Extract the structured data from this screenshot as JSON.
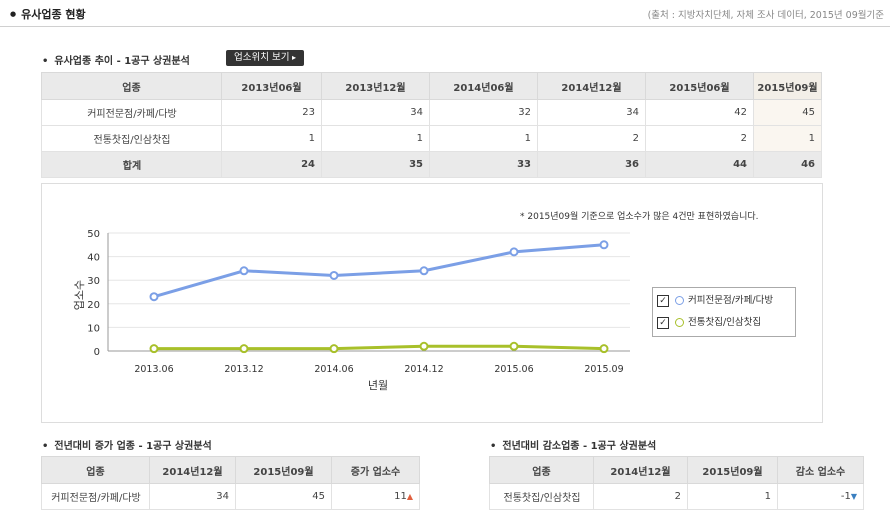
{
  "header": {
    "title": "유사업종 현황",
    "source": "(출처 : 지방자치단체, 자체 조사 데이터, 2015년 09월기준"
  },
  "trend": {
    "title": "유사업종 추이 - 1공구 상권분석",
    "map_button": "업소위치 보기",
    "columns": [
      "업종",
      "2013년06월",
      "2013년12월",
      "2014년06월",
      "2014년12월",
      "2015년06월",
      "2015년09월"
    ],
    "rows": [
      {
        "name": "커피전문점/카페/다방",
        "values": [
          "23",
          "34",
          "32",
          "34",
          "42",
          "45"
        ]
      },
      {
        "name": "전통찻집/인삼찻집",
        "values": [
          "1",
          "1",
          "1",
          "2",
          "2",
          "1"
        ]
      }
    ],
    "total": {
      "name": "합계",
      "values": [
        "24",
        "35",
        "33",
        "36",
        "44",
        "46"
      ]
    }
  },
  "chart_data": {
    "type": "line",
    "note": "* 2015년09월 기준으로 업소수가 많은 4건만 표현하였습니다.",
    "x": [
      "2013.06",
      "2013.12",
      "2014.06",
      "2014.12",
      "2015.06",
      "2015.09"
    ],
    "xlabel": "년월",
    "ylabel": "업소수",
    "ylim": [
      0,
      50
    ],
    "yticks": [
      "0",
      "10",
      "20",
      "30",
      "40",
      "50"
    ],
    "grid": true,
    "legend": "right",
    "series": [
      {
        "name": "커피전문점/카페/다방",
        "values": [
          23,
          34,
          32,
          34,
          42,
          45
        ],
        "color": "#7b9fe6"
      },
      {
        "name": "전통찻집/인삼찻집",
        "values": [
          1,
          1,
          1,
          2,
          2,
          1
        ],
        "color": "#a8c02a"
      }
    ]
  },
  "increase": {
    "title": "전년대비 증가 업종 - 1공구 상권분석",
    "columns": [
      "업종",
      "2014년12월",
      "2015년09월",
      "증가 업소수"
    ],
    "rows": [
      {
        "name": "커피전문점/카페/다방",
        "v1": "34",
        "v2": "45",
        "delta": "11",
        "arrow": "▲"
      }
    ]
  },
  "decrease": {
    "title": "전년대비 감소업종 - 1공구 상권분석",
    "columns": [
      "업종",
      "2014년12월",
      "2015년09월",
      "감소 업소수"
    ],
    "rows": [
      {
        "name": "전통찻집/인삼찻집",
        "v1": "2",
        "v2": "1",
        "delta": "-1",
        "arrow": "▼"
      }
    ]
  }
}
